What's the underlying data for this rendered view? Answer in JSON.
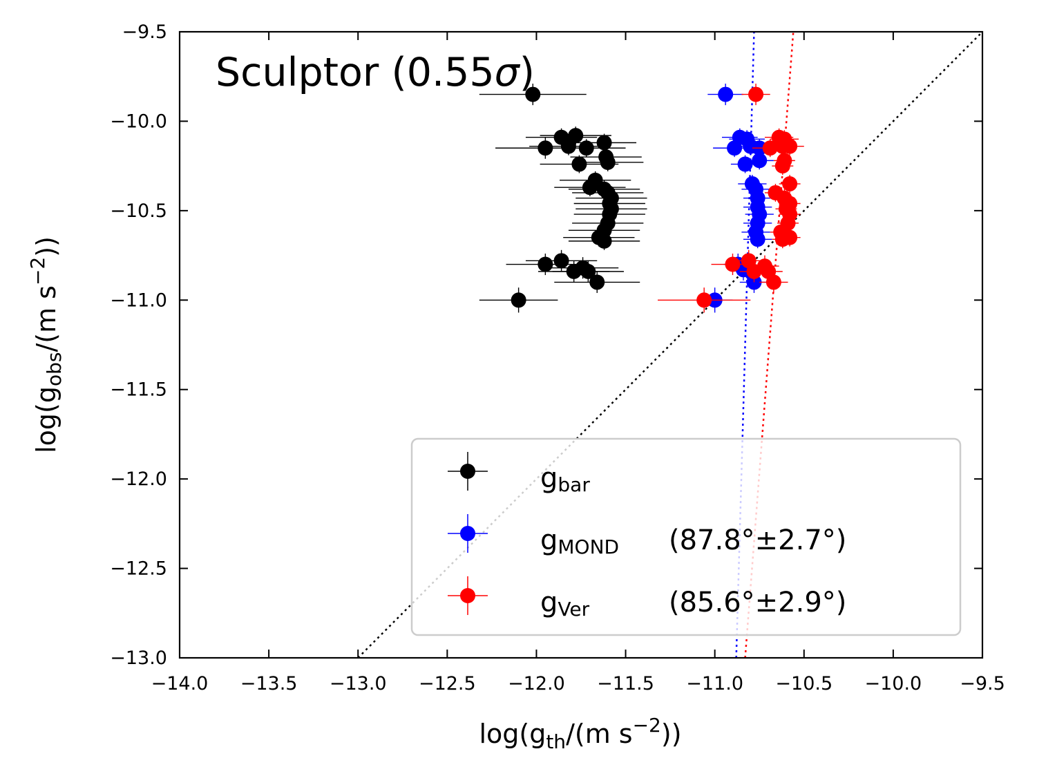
{
  "chart_data": {
    "type": "scatter",
    "title": "Sculptor (0.55σ)",
    "title_parts": {
      "name": "Sculptor",
      "open": "(0.55",
      "sigma": "σ",
      "close": ")"
    },
    "xlabel": "log(g_th/(m s^-2))",
    "ylabel": "log(g_obs/(m s^-2))",
    "xlabel_parts": {
      "pre": "log(g",
      "sub": "th",
      "mid": "/(m s",
      "sup": "−2",
      "post": "))"
    },
    "ylabel_parts": {
      "pre": "log(g",
      "sub": "obs",
      "mid": "/(m s",
      "sup": "−2",
      "post": "))"
    },
    "xlim": [
      -14.0,
      -9.5
    ],
    "ylim": [
      -13.0,
      -9.5
    ],
    "xticks": [
      -14.0,
      -13.5,
      -13.0,
      -12.5,
      -12.0,
      -11.5,
      -11.0,
      -10.5,
      -10.0,
      -9.5
    ],
    "yticks": [
      -13.0,
      -12.5,
      -12.0,
      -11.5,
      -11.0,
      -10.5,
      -10.0,
      -9.5
    ],
    "xtick_labels": [
      "−14.0",
      "−13.5",
      "−13.0",
      "−12.5",
      "−12.0",
      "−11.5",
      "−11.0",
      "−10.5",
      "−10.0",
      "−9.5"
    ],
    "ytick_labels": [
      "−13.0",
      "−12.5",
      "−12.0",
      "−11.5",
      "−11.0",
      "−10.5",
      "−10.0",
      "−9.5"
    ],
    "grid": false,
    "legend_position": "lower-right",
    "one_to_one_line": {
      "color": "#000000",
      "style": "dotted"
    },
    "series": [
      {
        "name": "g_bar",
        "label_main": "g",
        "label_sub": "bar",
        "label_extra": "",
        "color": "#000000",
        "points": [
          {
            "x": -12.02,
            "y": -9.85,
            "xerr": 0.3,
            "yerr": 0.06
          },
          {
            "x": -11.86,
            "y": -10.09,
            "xerr": 0.2,
            "yerr": 0.05
          },
          {
            "x": -11.78,
            "y": -10.08,
            "xerr": 0.2,
            "yerr": 0.05
          },
          {
            "x": -11.95,
            "y": -10.15,
            "xerr": 0.28,
            "yerr": 0.06
          },
          {
            "x": -11.82,
            "y": -10.14,
            "xerr": 0.22,
            "yerr": 0.05
          },
          {
            "x": -11.72,
            "y": -10.15,
            "xerr": 0.22,
            "yerr": 0.05
          },
          {
            "x": -11.62,
            "y": -10.12,
            "xerr": 0.18,
            "yerr": 0.05
          },
          {
            "x": -11.76,
            "y": -10.24,
            "xerr": 0.22,
            "yerr": 0.05
          },
          {
            "x": -11.61,
            "y": -10.2,
            "xerr": 0.2,
            "yerr": 0.05
          },
          {
            "x": -11.6,
            "y": -10.23,
            "xerr": 0.2,
            "yerr": 0.05
          },
          {
            "x": -11.67,
            "y": -10.33,
            "xerr": 0.2,
            "yerr": 0.05
          },
          {
            "x": -11.7,
            "y": -10.37,
            "xerr": 0.2,
            "yerr": 0.05
          },
          {
            "x": -11.62,
            "y": -10.38,
            "xerr": 0.2,
            "yerr": 0.05
          },
          {
            "x": -11.6,
            "y": -10.4,
            "xerr": 0.2,
            "yerr": 0.05
          },
          {
            "x": -11.58,
            "y": -10.43,
            "xerr": 0.2,
            "yerr": 0.05
          },
          {
            "x": -11.59,
            "y": -10.46,
            "xerr": 0.2,
            "yerr": 0.05
          },
          {
            "x": -11.58,
            "y": -10.49,
            "xerr": 0.2,
            "yerr": 0.05
          },
          {
            "x": -11.59,
            "y": -10.52,
            "xerr": 0.2,
            "yerr": 0.05
          },
          {
            "x": -11.6,
            "y": -10.57,
            "xerr": 0.2,
            "yerr": 0.05
          },
          {
            "x": -11.62,
            "y": -10.61,
            "xerr": 0.2,
            "yerr": 0.05
          },
          {
            "x": -11.65,
            "y": -10.65,
            "xerr": 0.2,
            "yerr": 0.05
          },
          {
            "x": -11.62,
            "y": -10.67,
            "xerr": 0.2,
            "yerr": 0.05
          },
          {
            "x": -11.95,
            "y": -10.8,
            "xerr": 0.22,
            "yerr": 0.06
          },
          {
            "x": -11.86,
            "y": -10.78,
            "xerr": 0.2,
            "yerr": 0.06
          },
          {
            "x": -11.74,
            "y": -10.82,
            "xerr": 0.2,
            "yerr": 0.06
          },
          {
            "x": -11.71,
            "y": -10.84,
            "xerr": 0.2,
            "yerr": 0.06
          },
          {
            "x": -11.79,
            "y": -10.84,
            "xerr": 0.2,
            "yerr": 0.06
          },
          {
            "x": -11.66,
            "y": -10.9,
            "xerr": 0.24,
            "yerr": 0.06
          },
          {
            "x": -12.1,
            "y": -11.0,
            "xerr": 0.22,
            "yerr": 0.07
          }
        ]
      },
      {
        "name": "g_MOND",
        "label_main": "g",
        "label_sub": "MOND",
        "label_extra": "(87.8°±2.7°)",
        "color": "#0000ff",
        "slope_line": {
          "angle_deg": 87.8,
          "x_at_bottom": -10.88,
          "x_at_top": -10.78
        },
        "points": [
          {
            "x": -10.94,
            "y": -9.85,
            "xerr": 0.1,
            "yerr": 0.06
          },
          {
            "x": -10.86,
            "y": -10.09,
            "xerr": 0.1,
            "yerr": 0.05
          },
          {
            "x": -10.82,
            "y": -10.1,
            "xerr": 0.1,
            "yerr": 0.05
          },
          {
            "x": -10.89,
            "y": -10.15,
            "xerr": 0.12,
            "yerr": 0.05
          },
          {
            "x": -10.8,
            "y": -10.14,
            "xerr": 0.1,
            "yerr": 0.05
          },
          {
            "x": -10.75,
            "y": -10.15,
            "xerr": 0.1,
            "yerr": 0.05
          },
          {
            "x": -10.83,
            "y": -10.24,
            "xerr": 0.08,
            "yerr": 0.05
          },
          {
            "x": -10.75,
            "y": -10.22,
            "xerr": 0.08,
            "yerr": 0.05
          },
          {
            "x": -10.79,
            "y": -10.35,
            "xerr": 0.08,
            "yerr": 0.05
          },
          {
            "x": -10.77,
            "y": -10.38,
            "xerr": 0.08,
            "yerr": 0.05
          },
          {
            "x": -10.76,
            "y": -10.43,
            "xerr": 0.08,
            "yerr": 0.05
          },
          {
            "x": -10.76,
            "y": -10.48,
            "xerr": 0.08,
            "yerr": 0.05
          },
          {
            "x": -10.75,
            "y": -10.52,
            "xerr": 0.08,
            "yerr": 0.05
          },
          {
            "x": -10.76,
            "y": -10.57,
            "xerr": 0.08,
            "yerr": 0.05
          },
          {
            "x": -10.77,
            "y": -10.62,
            "xerr": 0.08,
            "yerr": 0.05
          },
          {
            "x": -10.76,
            "y": -10.66,
            "xerr": 0.08,
            "yerr": 0.05
          },
          {
            "x": -10.87,
            "y": -10.8,
            "xerr": 0.08,
            "yerr": 0.06
          },
          {
            "x": -10.84,
            "y": -10.83,
            "xerr": 0.08,
            "yerr": 0.06
          },
          {
            "x": -10.79,
            "y": -10.85,
            "xerr": 0.08,
            "yerr": 0.06
          },
          {
            "x": -10.78,
            "y": -10.9,
            "xerr": 0.08,
            "yerr": 0.06
          },
          {
            "x": -11.0,
            "y": -11.0,
            "xerr": 0.1,
            "yerr": 0.07
          }
        ]
      },
      {
        "name": "g_Ver",
        "label_main": "g",
        "label_sub": "Ver",
        "label_extra": "(85.6°±2.9°)",
        "color": "#ff0000",
        "slope_line": {
          "angle_deg": 85.6,
          "x_at_bottom": -10.83,
          "x_at_top": -10.56
        },
        "points": [
          {
            "x": -10.77,
            "y": -9.85,
            "xerr": 0.08,
            "yerr": 0.06
          },
          {
            "x": -10.64,
            "y": -10.09,
            "xerr": 0.08,
            "yerr": 0.05
          },
          {
            "x": -10.61,
            "y": -10.1,
            "xerr": 0.08,
            "yerr": 0.05
          },
          {
            "x": -10.69,
            "y": -10.15,
            "xerr": 0.1,
            "yerr": 0.05
          },
          {
            "x": -10.58,
            "y": -10.14,
            "xerr": 0.08,
            "yerr": 0.05
          },
          {
            "x": -10.62,
            "y": -10.14,
            "xerr": 0.08,
            "yerr": 0.05
          },
          {
            "x": -10.61,
            "y": -10.22,
            "xerr": 0.06,
            "yerr": 0.05
          },
          {
            "x": -10.62,
            "y": -10.25,
            "xerr": 0.06,
            "yerr": 0.05
          },
          {
            "x": -10.58,
            "y": -10.35,
            "xerr": 0.06,
            "yerr": 0.05
          },
          {
            "x": -10.66,
            "y": -10.4,
            "xerr": 0.06,
            "yerr": 0.05
          },
          {
            "x": -10.61,
            "y": -10.43,
            "xerr": 0.06,
            "yerr": 0.05
          },
          {
            "x": -10.58,
            "y": -10.46,
            "xerr": 0.06,
            "yerr": 0.05
          },
          {
            "x": -10.6,
            "y": -10.49,
            "xerr": 0.06,
            "yerr": 0.05
          },
          {
            "x": -10.58,
            "y": -10.52,
            "xerr": 0.06,
            "yerr": 0.05
          },
          {
            "x": -10.59,
            "y": -10.57,
            "xerr": 0.06,
            "yerr": 0.05
          },
          {
            "x": -10.63,
            "y": -10.62,
            "xerr": 0.06,
            "yerr": 0.05
          },
          {
            "x": -10.58,
            "y": -10.65,
            "xerr": 0.06,
            "yerr": 0.05
          },
          {
            "x": -10.62,
            "y": -10.66,
            "xerr": 0.06,
            "yerr": 0.05
          },
          {
            "x": -10.9,
            "y": -10.8,
            "xerr": 0.12,
            "yerr": 0.06
          },
          {
            "x": -10.81,
            "y": -10.78,
            "xerr": 0.08,
            "yerr": 0.06
          },
          {
            "x": -10.72,
            "y": -10.81,
            "xerr": 0.08,
            "yerr": 0.06
          },
          {
            "x": -10.7,
            "y": -10.84,
            "xerr": 0.08,
            "yerr": 0.06
          },
          {
            "x": -10.78,
            "y": -10.84,
            "xerr": 0.08,
            "yerr": 0.06
          },
          {
            "x": -10.67,
            "y": -10.9,
            "xerr": 0.08,
            "yerr": 0.06
          },
          {
            "x": -11.06,
            "y": -11.0,
            "xerr": 0.26,
            "yerr": 0.07
          }
        ]
      }
    ]
  }
}
